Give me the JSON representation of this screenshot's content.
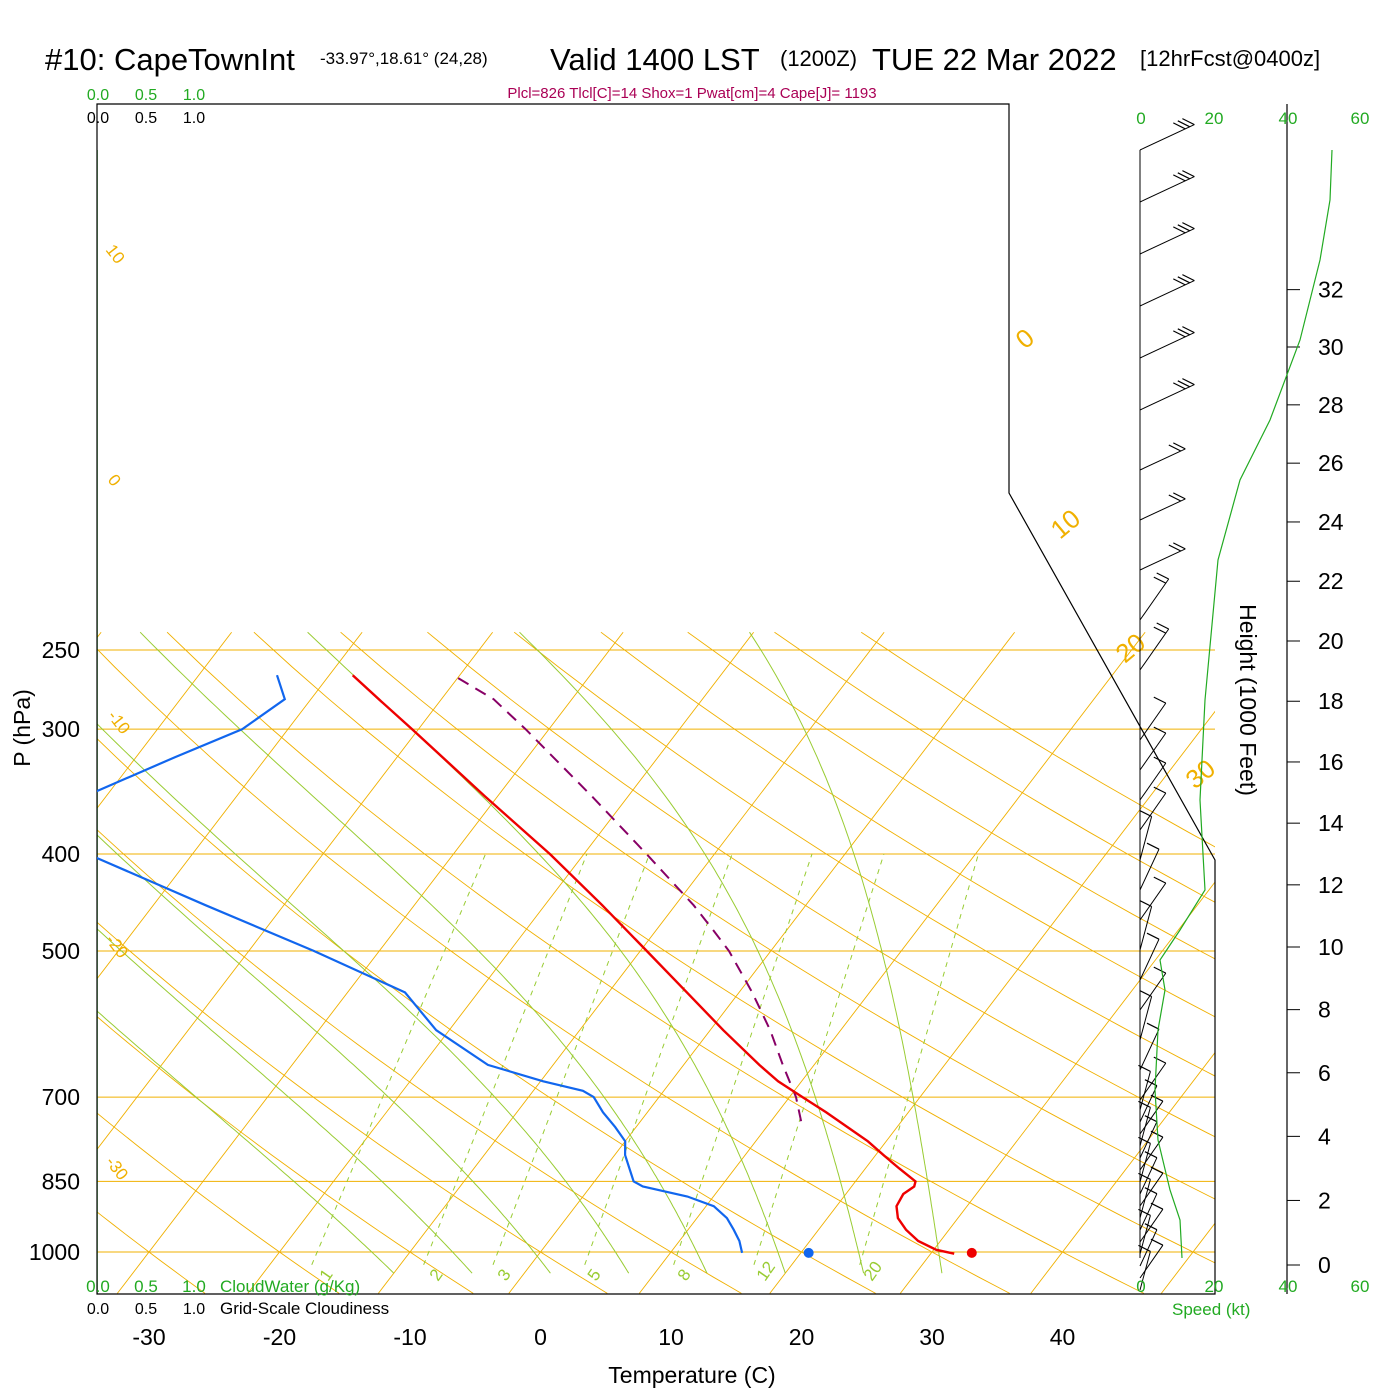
{
  "header": {
    "station": "#10: CapeTownInt",
    "coords": "-33.97°,18.61° (24,28)",
    "valid": "Valid 1400 LST",
    "zulu": "(1200Z)",
    "date": "TUE 22 Mar 2022",
    "forecast": "[12hrFcst@0400z]",
    "indices": "Plcl=826 Tlcl[C]=14 Shox=1 Pwat[cm]=4 Cape[J]= 1193"
  },
  "colors": {
    "temperature": "#ee0000",
    "dewpoint": "#1166ee",
    "parcel": "#880066",
    "isobar": "#f0b000",
    "dry_adiabat": "#f0b000",
    "moist_adiabat": "#99cc33",
    "mixing_ratio": "#99cc33",
    "height_curve": "#22aa22",
    "indices_text": "#aa0055"
  },
  "chart_data": {
    "type": "skew-t",
    "xlabel": "Temperature (C)",
    "ylabel": "P (hPa)",
    "right_label": "Height (1000 Feet)",
    "x_ticks": [
      -30,
      -20,
      -10,
      0,
      10,
      20,
      30,
      40
    ],
    "p_ticks": [
      250,
      300,
      400,
      500,
      700,
      850,
      1000
    ],
    "height_ticks": [
      0,
      2,
      4,
      6,
      8,
      10,
      12,
      14,
      16,
      18,
      20,
      22,
      24,
      26,
      28,
      30,
      32
    ],
    "isotherm_labels": [
      10,
      0,
      -10,
      -20,
      -30
    ],
    "dry_adiabat_labels": [
      0,
      10,
      20,
      30
    ],
    "mixing_ratio_labels": [
      "1",
      "2",
      "3",
      "5",
      "8",
      "12",
      "20"
    ],
    "speed_ticks": [
      0,
      20,
      40,
      60
    ],
    "speed_label": "Speed (kt)",
    "cloud_ticks": [
      "0.0",
      "0.5",
      "1.0"
    ],
    "cloudwater_label": "CloudWater (g/Kg)",
    "cloudiness_label": "Grid-Scale Cloudiness",
    "temperature_profile": [
      {
        "p": 1004,
        "t": 31.8
      },
      {
        "p": 995,
        "t": 30.2
      },
      {
        "p": 975,
        "t": 28.3
      },
      {
        "p": 950,
        "t": 26.7
      },
      {
        "p": 925,
        "t": 25.4
      },
      {
        "p": 900,
        "t": 24.6
      },
      {
        "p": 875,
        "t": 24.4
      },
      {
        "p": 860,
        "t": 24.8
      },
      {
        "p": 850,
        "t": 24.6
      },
      {
        "p": 825,
        "t": 22.6
      },
      {
        "p": 800,
        "t": 20.6
      },
      {
        "p": 775,
        "t": 18.6
      },
      {
        "p": 750,
        "t": 16.2
      },
      {
        "p": 725,
        "t": 13.7
      },
      {
        "p": 700,
        "t": 11.0
      },
      {
        "p": 675,
        "t": 8.2
      },
      {
        "p": 650,
        "t": 5.8
      },
      {
        "p": 600,
        "t": 1.0
      },
      {
        "p": 550,
        "t": -4.0
      },
      {
        "p": 500,
        "t": -9.5
      },
      {
        "p": 450,
        "t": -15.6
      },
      {
        "p": 400,
        "t": -22.6
      },
      {
        "p": 350,
        "t": -31.0
      },
      {
        "p": 300,
        "t": -40.5
      },
      {
        "p": 280,
        "t": -44.8
      },
      {
        "p": 265,
        "t": -48.2
      }
    ],
    "dewpoint_profile": [
      {
        "p": 1002,
        "t": 15.5
      },
      {
        "p": 975,
        "t": 14.6
      },
      {
        "p": 950,
        "t": 13.5
      },
      {
        "p": 925,
        "t": 12.3
      },
      {
        "p": 900,
        "t": 10.6
      },
      {
        "p": 880,
        "t": 8.0
      },
      {
        "p": 860,
        "t": 4.0
      },
      {
        "p": 850,
        "t": 3.0
      },
      {
        "p": 800,
        "t": 0.8
      },
      {
        "p": 775,
        "t": 0.0
      },
      {
        "p": 750,
        "t": -1.6
      },
      {
        "p": 725,
        "t": -3.4
      },
      {
        "p": 700,
        "t": -5.0
      },
      {
        "p": 690,
        "t": -6.2
      },
      {
        "p": 675,
        "t": -9.8
      },
      {
        "p": 650,
        "t": -15.0
      },
      {
        "p": 600,
        "t": -21.0
      },
      {
        "p": 550,
        "t": -25.6
      },
      {
        "p": 500,
        "t": -35.0
      },
      {
        "p": 450,
        "t": -46.0
      },
      {
        "p": 400,
        "t": -58.0
      },
      {
        "p": 370,
        "t": -62.5
      },
      {
        "p": 350,
        "t": -61.6
      },
      {
        "p": 320,
        "t": -57.0
      },
      {
        "p": 300,
        "t": -53.5
      },
      {
        "p": 280,
        "t": -52.0
      },
      {
        "p": 265,
        "t": -54.0
      }
    ],
    "parcel_profile": [
      {
        "p": 740,
        "t": 12.3
      },
      {
        "p": 700,
        "t": 10.5
      },
      {
        "p": 650,
        "t": 7.6
      },
      {
        "p": 600,
        "t": 4.6
      },
      {
        "p": 550,
        "t": 1.0
      },
      {
        "p": 500,
        "t": -3.2
      },
      {
        "p": 475,
        "t": -5.8
      },
      {
        "p": 450,
        "t": -8.6
      },
      {
        "p": 400,
        "t": -15.2
      },
      {
        "p": 350,
        "t": -22.8
      },
      {
        "p": 300,
        "t": -31.8
      },
      {
        "p": 280,
        "t": -36.0
      },
      {
        "p": 265,
        "t": -40.5
      }
    ],
    "surface_temperature": 33.1,
    "surface_dewpoint": 20.6,
    "surface_pressure": 1002
  }
}
